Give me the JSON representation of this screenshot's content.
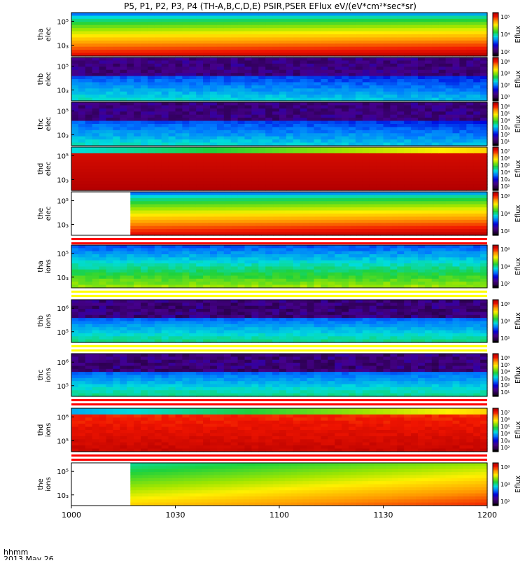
{
  "title": "P5, P1, P2, P3, P4 (TH-A,B,C,D,E) PSIR,PSER EFlux eV/(eV*cm²*sec*sr)",
  "time_axis": {
    "label_line1": "hhmm",
    "label_line2": "2013 May 26",
    "ticks": [
      "1000",
      "1030",
      "1100",
      "1130",
      "1200"
    ]
  },
  "colorbar_label": "Eflux",
  "chart_data": [
    {
      "type": "heatmap",
      "ylabel": [
        "tha",
        "elec"
      ],
      "y_ticks": [
        "10⁵",
        "10₃"
      ],
      "colorbar_ticks": [
        "10⁵",
        "10⁴",
        "10²"
      ],
      "data_start": 0,
      "profile": "flux_hot",
      "overlay": null
    },
    {
      "type": "heatmap",
      "ylabel": [
        "thb",
        "elec"
      ],
      "y_ticks": [
        "10⁵",
        "10₃"
      ],
      "colorbar_ticks": [
        "10⁶",
        "10⁴",
        "10²",
        "10⁰"
      ],
      "data_start": 0,
      "profile": "noisy_cool",
      "overlay": null
    },
    {
      "type": "heatmap",
      "ylabel": [
        "thc",
        "elec"
      ],
      "y_ticks": [
        "10⁵",
        "10₃"
      ],
      "colorbar_ticks": [
        "10⁶",
        "10⁵",
        "10⁴",
        "10₃",
        "10²",
        "10¹"
      ],
      "data_start": 0,
      "profile": "noisy_cool",
      "overlay": null
    },
    {
      "type": "heatmap",
      "ylabel": [
        "thd",
        "elec"
      ],
      "y_ticks": [
        "10⁵",
        "10₃"
      ],
      "colorbar_ticks": [
        "10⁷",
        "10⁶",
        "10⁵",
        "10⁴",
        "10₃",
        "10²"
      ],
      "data_start": 0,
      "profile": "saturated",
      "overlay": null
    },
    {
      "type": "heatmap",
      "ylabel": [
        "the",
        "elec"
      ],
      "y_ticks": [
        "10⁵",
        "10₃"
      ],
      "colorbar_ticks": [
        "10⁶",
        "10⁴",
        "10²"
      ],
      "data_start": 1017,
      "profile": "flux_hot",
      "overlay": "redwhite"
    },
    {
      "type": "heatmap",
      "ylabel": [
        "tha",
        "ions"
      ],
      "y_ticks": [
        "10⁵",
        "10₃"
      ],
      "colorbar_ticks": [
        "10⁶",
        "10⁴",
        "10²"
      ],
      "data_start": 0,
      "profile": "ion_mid",
      "overlay": "yellowwhite"
    },
    {
      "type": "heatmap",
      "ylabel": [
        "thb",
        "ions"
      ],
      "y_ticks": [
        "10⁶",
        "10⁵"
      ],
      "colorbar_ticks": [
        "10⁶",
        "10⁴",
        "10²"
      ],
      "data_start": 0,
      "profile": "noisy_ion",
      "overlay": "yellowwhite"
    },
    {
      "type": "heatmap",
      "ylabel": [
        "thc",
        "ions"
      ],
      "y_ticks": [
        "10⁶",
        "10⁵"
      ],
      "colorbar_ticks": [
        "10⁶",
        "10⁵",
        "10⁴",
        "10₃",
        "10²",
        "10¹"
      ],
      "data_start": 0,
      "profile": "noisy_ion",
      "overlay": "redwhite"
    },
    {
      "type": "heatmap",
      "ylabel": [
        "thd",
        "ions"
      ],
      "y_ticks": [
        "10⁶",
        "10⁵"
      ],
      "colorbar_ticks": [
        "10⁷",
        "10⁶",
        "10⁵",
        "10⁴",
        "10₃",
        "10²"
      ],
      "data_start": 0,
      "profile": "saturated_ion",
      "overlay": "redwhite"
    },
    {
      "type": "heatmap",
      "ylabel": [
        "the",
        "ions"
      ],
      "y_ticks": [
        "10⁵",
        "10₃"
      ],
      "colorbar_ticks": [
        "10⁶",
        "10⁴",
        "10²"
      ],
      "data_start": 1017,
      "profile": "ion_warm",
      "overlay": null
    }
  ]
}
